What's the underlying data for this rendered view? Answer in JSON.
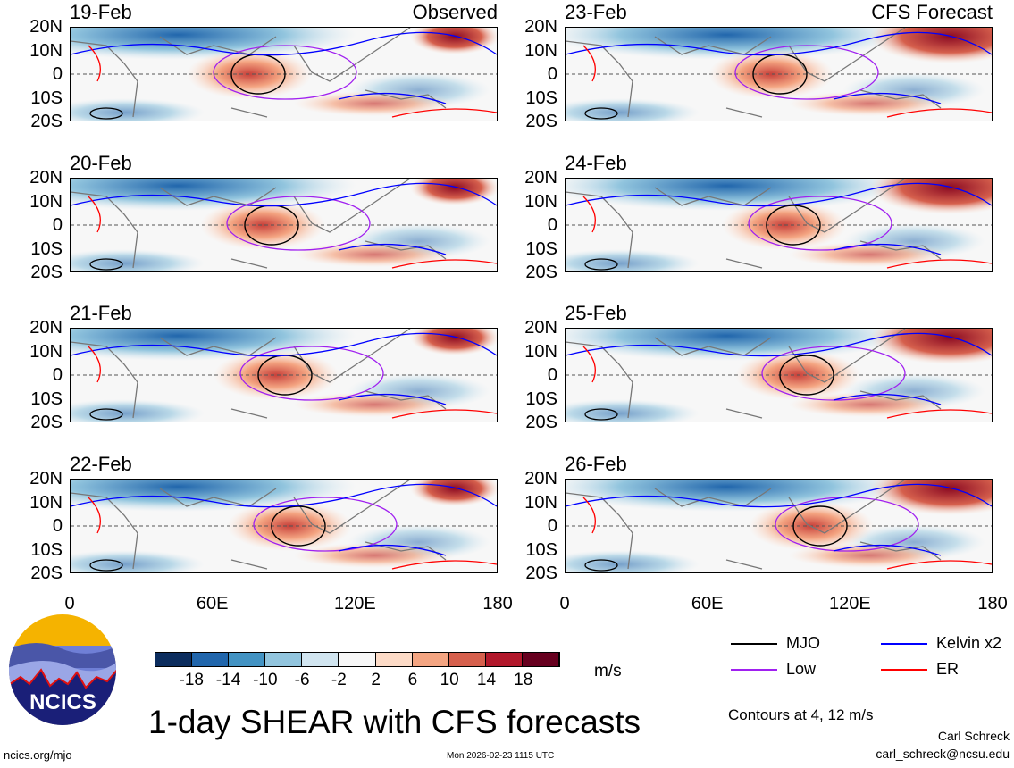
{
  "title": "1-day SHEAR with CFS forecasts",
  "panels": [
    {
      "date": "19-Feb",
      "label": "Observed"
    },
    {
      "date": "23-Feb",
      "label": "CFS Forecast"
    },
    {
      "date": "20-Feb",
      "label": ""
    },
    {
      "date": "24-Feb",
      "label": ""
    },
    {
      "date": "21-Feb",
      "label": ""
    },
    {
      "date": "25-Feb",
      "label": ""
    },
    {
      "date": "22-Feb",
      "label": ""
    },
    {
      "date": "26-Feb",
      "label": ""
    }
  ],
  "y_ticks": [
    "20N",
    "10N",
    "0",
    "10S",
    "20S"
  ],
  "x_ticks": [
    "0",
    "60E",
    "120E",
    "180"
  ],
  "colorbar": {
    "labels": [
      "-18",
      "-14",
      "-10",
      "-6",
      "-2",
      "2",
      "6",
      "10",
      "14",
      "18"
    ],
    "colors": [
      "#0c2d5e",
      "#2166ac",
      "#4393c3",
      "#92c5de",
      "#d1e5f0",
      "#f7f7f7",
      "#fddbc7",
      "#f4a582",
      "#d6604d",
      "#b2182b",
      "#67001f"
    ],
    "units": "m/s"
  },
  "legend": [
    {
      "label": "MJO",
      "color": "#000000"
    },
    {
      "label": "Kelvin x2",
      "color": "#0000ff"
    },
    {
      "label": "Low",
      "color": "#a020f0"
    },
    {
      "label": "ER",
      "color": "#ff0000"
    }
  ],
  "contours_note": "Contours at 4, 12 m/s",
  "logo_text": "NCICS",
  "website": "ncics.org/mjo",
  "timestamp": "Mon 2026-02-23 1115 UTC",
  "author": "Carl Schreck",
  "email": "carl_schreck@ncsu.edu"
}
